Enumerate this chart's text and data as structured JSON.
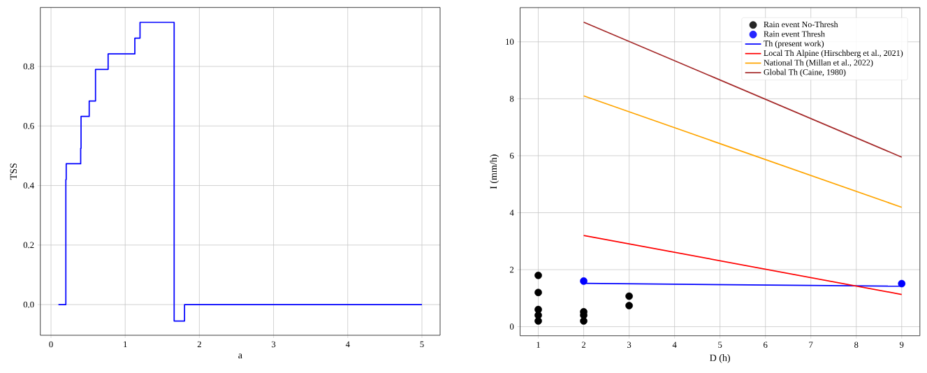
{
  "chart_data": [
    {
      "type": "step",
      "xlabel": "a",
      "ylabel": "TSS",
      "color": "#0000ff",
      "x": [
        0.1,
        0.2,
        0.205,
        0.4,
        0.405,
        0.515,
        0.6,
        0.77,
        1.13,
        1.2,
        1.66,
        1.8,
        5.0
      ],
      "values": [
        0,
        0.42,
        0.473,
        0.525,
        0.632,
        0.684,
        0.79,
        0.842,
        0.895,
        0.948,
        -0.055,
        0,
        0
      ],
      "xlim": [
        -0.144,
        5.245
      ],
      "ylim": [
        -0.103,
        0.998
      ],
      "xticks": [
        0,
        1,
        2,
        3,
        4,
        5
      ],
      "yticks": [
        {
          "value": 0,
          "label": "0.0"
        },
        {
          "value": 0.2,
          "label": "0.2"
        },
        {
          "value": 0.4,
          "label": "0.4"
        },
        {
          "value": 0.6,
          "label": "0.6"
        },
        {
          "value": 0.8,
          "label": "0.8"
        }
      ],
      "grid": true,
      "legend": false
    },
    {
      "type": "scatter",
      "xlabel": "D (h)",
      "ylabel": "I (mm/h)",
      "series": [
        {
          "name": "Rain event No-Thresh",
          "type": "scatter",
          "color": "#000000",
          "marker": "circle",
          "x": [
            1,
            1,
            1,
            1,
            1,
            2,
            2,
            2,
            3,
            3
          ],
          "values": [
            1.8,
            1.2,
            0.6,
            0.4,
            0.2,
            0.52,
            0.4,
            0.2,
            1.07,
            0.74
          ]
        },
        {
          "name": "Rain event Thresh",
          "type": "scatter",
          "color": "#0000ff",
          "marker": "circle",
          "x": [
            2,
            9
          ],
          "values": [
            1.6,
            1.51
          ]
        },
        {
          "name": "Th (present work)",
          "type": "line",
          "marker": "none",
          "color": "#0000ff",
          "x": [
            2,
            9
          ],
          "values": [
            1.52,
            1.42
          ]
        },
        {
          "name": "Local Th Alpine (Hirschberg et al., 2021)",
          "type": "line",
          "marker": "none",
          "color": "#ff0000",
          "x": [
            2,
            9
          ],
          "values": [
            3.2,
            1.13
          ]
        },
        {
          "name": "National Th (Millan et al., 2022)",
          "type": "line",
          "marker": "none",
          "color": "#ffa500",
          "x": [
            2,
            9
          ],
          "values": [
            8.1,
            4.19
          ]
        },
        {
          "name": "Global Th (Caine, 1980)",
          "type": "line",
          "marker": "none",
          "color": "#a52a2a",
          "x": [
            2,
            9
          ],
          "values": [
            10.69,
            5.95
          ]
        }
      ],
      "xlim": [
        0.6,
        9.4
      ],
      "ylim": [
        -0.32,
        11.2
      ],
      "xticks": [
        1,
        2,
        3,
        4,
        5,
        6,
        7,
        8,
        9
      ],
      "yticks": [
        0,
        2,
        4,
        6,
        8,
        10
      ],
      "grid": true,
      "legend": "top right"
    }
  ]
}
